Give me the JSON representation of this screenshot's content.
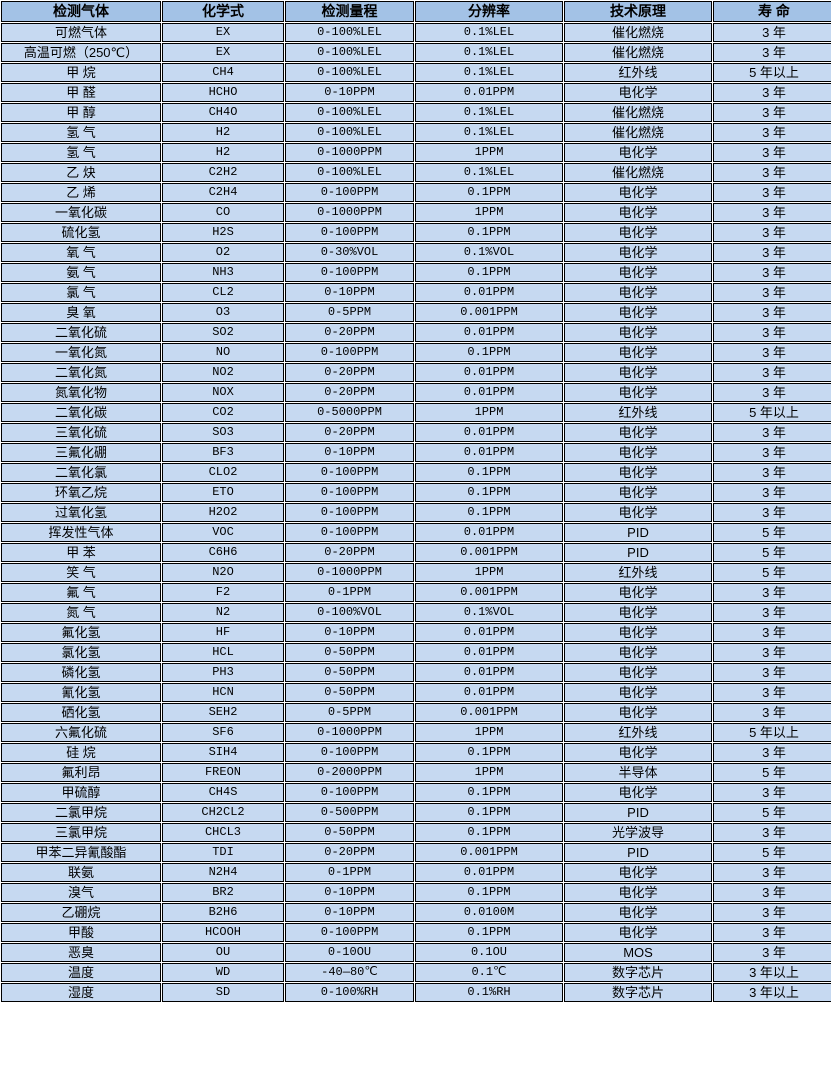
{
  "colors": {
    "header_bg": "#a3c2e6",
    "row_bg": "#c6d9f1",
    "grid_border": "#000000",
    "gap": "#ffffff",
    "text": "#000000"
  },
  "table": {
    "columns": [
      {
        "key": "gas",
        "label": "检测气体"
      },
      {
        "key": "formula",
        "label": "化学式"
      },
      {
        "key": "range",
        "label": "检测量程"
      },
      {
        "key": "resolution",
        "label": "分辨率"
      },
      {
        "key": "principle",
        "label": "技术原理"
      },
      {
        "key": "lifespan",
        "label": "寿 命"
      }
    ],
    "rows": [
      [
        "可燃气体",
        "EX",
        "0-100%LEL",
        "0.1%LEL",
        "催化燃烧",
        "3 年"
      ],
      [
        "高温可燃（250℃）",
        "EX",
        "0-100%LEL",
        "0.1%LEL",
        "催化燃烧",
        "3 年"
      ],
      [
        "甲 烷",
        "CH4",
        "0-100%LEL",
        "0.1%LEL",
        "红外线",
        "5 年以上"
      ],
      [
        "甲 醛",
        "HCHO",
        "0-10PPM",
        "0.01PPM",
        "电化学",
        "3 年"
      ],
      [
        "甲 醇",
        "CH4O",
        "0-100%LEL",
        "0.1%LEL",
        "催化燃烧",
        "3 年"
      ],
      [
        "氢 气",
        "H2",
        "0-100%LEL",
        "0.1%LEL",
        "催化燃烧",
        "3 年"
      ],
      [
        "氢 气",
        "H2",
        "0-1000PPM",
        "1PPM",
        "电化学",
        "3 年"
      ],
      [
        "乙 炔",
        "C2H2",
        "0-100%LEL",
        "0.1%LEL",
        "催化燃烧",
        "3 年"
      ],
      [
        "乙 烯",
        "C2H4",
        "0-100PPM",
        "0.1PPM",
        "电化学",
        "3 年"
      ],
      [
        "一氧化碳",
        "CO",
        "0-1000PPM",
        "1PPM",
        "电化学",
        "3 年"
      ],
      [
        "硫化氢",
        "H2S",
        "0-100PPM",
        "0.1PPM",
        "电化学",
        "3 年"
      ],
      [
        "氧 气",
        "O2",
        "0-30%VOL",
        "0.1%VOL",
        "电化学",
        "3 年"
      ],
      [
        "氨 气",
        "NH3",
        "0-100PPM",
        "0.1PPM",
        "电化学",
        "3 年"
      ],
      [
        "氯 气",
        "CL2",
        "0-10PPM",
        "0.01PPM",
        "电化学",
        "3 年"
      ],
      [
        "臭 氧",
        "O3",
        "0-5PPM",
        "0.001PPM",
        "电化学",
        "3 年"
      ],
      [
        "二氧化硫",
        "SO2",
        "0-20PPM",
        "0.01PPM",
        "电化学",
        "3 年"
      ],
      [
        "一氧化氮",
        "NO",
        "0-100PPM",
        "0.1PPM",
        "电化学",
        "3 年"
      ],
      [
        "二氧化氮",
        "NO2",
        "0-20PPM",
        "0.01PPM",
        "电化学",
        "3 年"
      ],
      [
        "氮氧化物",
        "NOX",
        "0-20PPM",
        "0.01PPM",
        "电化学",
        "3 年"
      ],
      [
        "二氧化碳",
        "CO2",
        "0-5000PPM",
        "1PPM",
        "红外线",
        "5 年以上"
      ],
      [
        "三氧化硫",
        "SO3",
        "0-20PPM",
        "0.01PPM",
        "电化学",
        "3 年"
      ],
      [
        "三氟化硼",
        "BF3",
        "0-10PPM",
        "0.01PPM",
        "电化学",
        "3 年"
      ],
      [
        "二氧化氯",
        "CLO2",
        "0-100PPM",
        "0.1PPM",
        "电化学",
        "3 年"
      ],
      [
        "环氧乙烷",
        "ETO",
        "0-100PPM",
        "0.1PPM",
        "电化学",
        "3 年"
      ],
      [
        "过氧化氢",
        "H2O2",
        "0-100PPM",
        "0.1PPM",
        "电化学",
        "3 年"
      ],
      [
        "挥发性气体",
        "VOC",
        "0-100PPM",
        "0.01PPM",
        "PID",
        "5 年"
      ],
      [
        "甲 苯",
        "C6H6",
        "0-20PPM",
        "0.001PPM",
        "PID",
        "5 年"
      ],
      [
        "笑 气",
        "N2O",
        "0-1000PPM",
        "1PPM",
        "红外线",
        "5 年"
      ],
      [
        "氟 气",
        "F2",
        "0-1PPM",
        "0.001PPM",
        "电化学",
        "3 年"
      ],
      [
        "氮 气",
        "N2",
        "0-100%VOL",
        "0.1%VOL",
        "电化学",
        "3 年"
      ],
      [
        "氟化氢",
        "HF",
        "0-10PPM",
        "0.01PPM",
        "电化学",
        "3 年"
      ],
      [
        "氯化氢",
        "HCL",
        "0-50PPM",
        "0.01PPM",
        "电化学",
        "3 年"
      ],
      [
        "磷化氢",
        "PH3",
        "0-50PPM",
        "0.01PPM",
        "电化学",
        "3 年"
      ],
      [
        "氰化氢",
        "HCN",
        "0-50PPM",
        "0.01PPM",
        "电化学",
        "3 年"
      ],
      [
        "硒化氢",
        "SEH2",
        "0-5PPM",
        "0.001PPM",
        "电化学",
        "3 年"
      ],
      [
        "六氟化硫",
        "SF6",
        "0-1000PPM",
        "1PPM",
        "红外线",
        "5 年以上"
      ],
      [
        "硅 烷",
        "SIH4",
        "0-100PPM",
        "0.1PPM",
        "电化学",
        "3 年"
      ],
      [
        "氟利昂",
        "FREON",
        "0-2000PPM",
        "1PPM",
        "半导体",
        "5 年"
      ],
      [
        "甲硫醇",
        "CH4S",
        "0-100PPM",
        "0.1PPM",
        "电化学",
        "3 年"
      ],
      [
        "二氯甲烷",
        "CH2CL2",
        "0-500PPM",
        "0.1PPM",
        "PID",
        "5 年"
      ],
      [
        "三氯甲烷",
        "CHCL3",
        "0-50PPM",
        "0.1PPM",
        "光学波导",
        "3 年"
      ],
      [
        "甲苯二异氰酸酯",
        "TDI",
        "0-20PPM",
        "0.001PPM",
        "PID",
        "5 年"
      ],
      [
        "联氨",
        "N2H4",
        "0-1PPM",
        "0.01PPM",
        "电化学",
        "3 年"
      ],
      [
        "溴气",
        "BR2",
        "0-10PPM",
        "0.1PPM",
        "电化学",
        "3 年"
      ],
      [
        "乙硼烷",
        "B2H6",
        "0-10PPM",
        "0.0100M",
        "电化学",
        "3 年"
      ],
      [
        "甲酸",
        "HCOOH",
        "0-100PPM",
        "0.1PPM",
        "电化学",
        "3 年"
      ],
      [
        "恶臭",
        "OU",
        "0-10OU",
        "0.1OU",
        "MOS",
        "3 年"
      ],
      [
        "温度",
        "WD",
        "-40—80℃",
        "0.1℃",
        "数字芯片",
        "3 年以上"
      ],
      [
        "湿度",
        "SD",
        "0-100%RH",
        "0.1%RH",
        "数字芯片",
        "3 年以上"
      ]
    ]
  }
}
